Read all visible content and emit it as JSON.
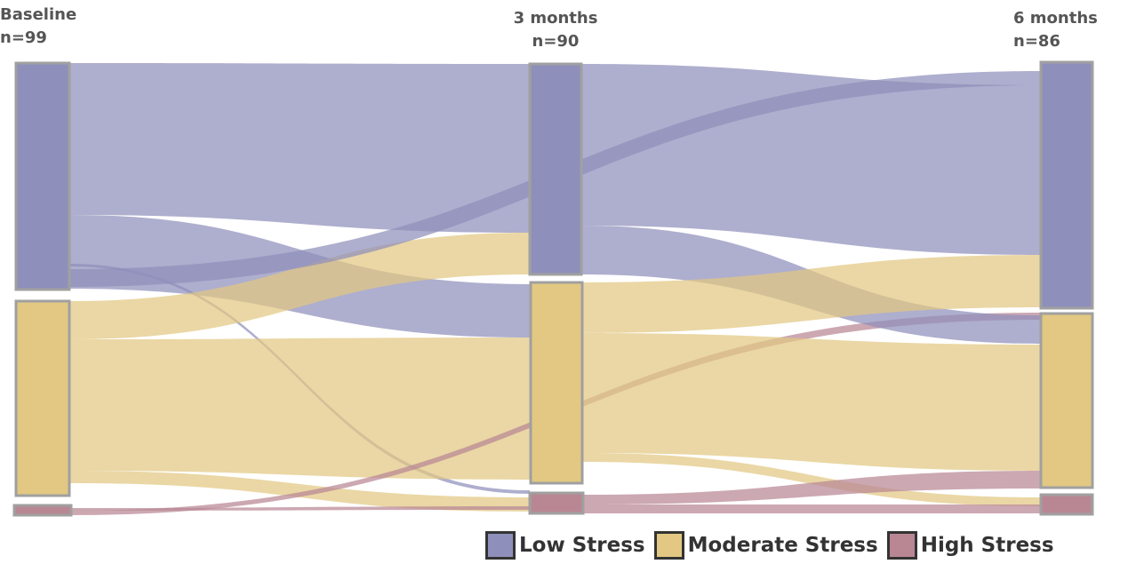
{
  "diagram": {
    "type": "sankey",
    "columns": [
      {
        "title": "Baseline",
        "n": "n=99"
      },
      {
        "title": "3 months",
        "n": "n=90"
      },
      {
        "title": "6 months",
        "n": "n=86"
      }
    ],
    "categories": [
      {
        "key": "low",
        "label": "Low Stress",
        "color": "#8f8fbb"
      },
      {
        "key": "moderate",
        "label": "Moderate Stress",
        "color": "#e2c882"
      },
      {
        "key": "high",
        "label": "High Stress",
        "color": "#b98794"
      }
    ],
    "node_border_color": "#a0a0a0",
    "nodes": [
      {
        "id": "b-low",
        "column": 0,
        "category": "low"
      },
      {
        "id": "b-mod",
        "column": 0,
        "category": "moderate"
      },
      {
        "id": "b-high",
        "column": 0,
        "category": "high"
      },
      {
        "id": "m3-low",
        "column": 1,
        "category": "low"
      },
      {
        "id": "m3-mod",
        "column": 1,
        "category": "moderate"
      },
      {
        "id": "m3-high",
        "column": 1,
        "category": "high"
      },
      {
        "id": "m6-low",
        "column": 2,
        "category": "low"
      },
      {
        "id": "m6-mod",
        "column": 2,
        "category": "moderate"
      },
      {
        "id": "m6-high",
        "column": 2,
        "category": "high"
      }
    ],
    "links": [
      {
        "from": "b-low",
        "to": "m3-low",
        "category": "low"
      },
      {
        "from": "b-low",
        "to": "m3-mod",
        "category": "low"
      },
      {
        "from": "b-low",
        "to": "m3-high",
        "category": "low"
      },
      {
        "from": "b-mod",
        "to": "m3-low",
        "category": "moderate"
      },
      {
        "from": "b-mod",
        "to": "m3-mod",
        "category": "moderate"
      },
      {
        "from": "b-mod",
        "to": "m3-high",
        "category": "moderate"
      },
      {
        "from": "b-high",
        "to": "m3-high",
        "category": "high"
      },
      {
        "from": "b-low",
        "to": "m6-low",
        "category": "low"
      },
      {
        "from": "b-high",
        "to": "m6-mod",
        "category": "high"
      },
      {
        "from": "m3-low",
        "to": "m6-low",
        "category": "low"
      },
      {
        "from": "m3-low",
        "to": "m6-mod",
        "category": "low"
      },
      {
        "from": "m3-mod",
        "to": "m6-low",
        "category": "moderate"
      },
      {
        "from": "m3-mod",
        "to": "m6-mod",
        "category": "moderate"
      },
      {
        "from": "m3-mod",
        "to": "m6-high",
        "category": "moderate"
      },
      {
        "from": "m3-high",
        "to": "m6-mod",
        "category": "high"
      },
      {
        "from": "m3-high",
        "to": "m6-high",
        "category": "high"
      }
    ]
  }
}
